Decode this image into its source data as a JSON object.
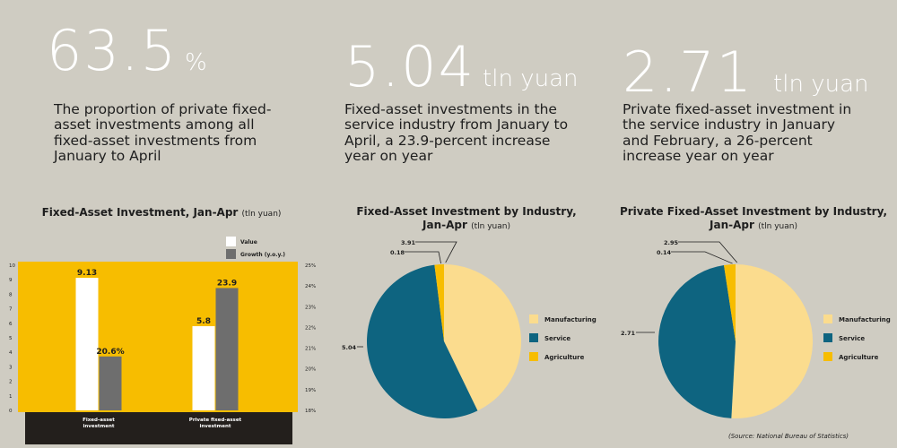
{
  "stats": [
    {
      "value": "63.5",
      "unit": "%",
      "text": "The proportion of private fixed-asset investments among all fixed-asset investments from January to April"
    },
    {
      "value": "5.04",
      "unit": "tln yuan",
      "text": "Fixed-asset investments in the service industry from January to April, a 23.9-percent increase year on year"
    },
    {
      "value": "2.71",
      "unit": "tln yuan",
      "text": "Private fixed-asset investment in the service industry in January and February, a 26-percent increase year on year"
    }
  ],
  "source": "(Source: National Bureau of Statistics)",
  "colors": {
    "background": "#cfccc2",
    "bar_panel": "#f7bd00",
    "value_bar": "#ffffff",
    "growth_bar": "#6e6e6e",
    "manufacturing": "#fbdc8e",
    "service": "#0e6480",
    "agriculture": "#f7bd00"
  },
  "chart_data": [
    {
      "type": "bar",
      "title": "Fixed-Asset Investment, Jan-Apr",
      "title_unit": "(tln yuan)",
      "categories": [
        "Fixed-asset investment",
        "Private fixed-asset investment"
      ],
      "series": [
        {
          "name": "Value",
          "values": [
            9.13,
            5.8
          ],
          "labels": [
            "9.13",
            "5.8"
          ]
        },
        {
          "name": "Growth (y.o.y.)",
          "values": [
            20.6,
            23.9
          ],
          "labels": [
            "20.6%",
            "23.9"
          ]
        }
      ],
      "ylim_left": [
        0,
        10
      ],
      "yticks_left": [
        "0",
        "1",
        "2",
        "3",
        "4",
        "5",
        "6",
        "7",
        "8",
        "9",
        "10"
      ],
      "ylim_right": [
        18,
        25
      ],
      "yticks_right": [
        "18%",
        "19%",
        "20%",
        "21%",
        "22%",
        "23%",
        "24%",
        "25%"
      ],
      "legend": "top-right"
    },
    {
      "type": "pie",
      "title": "Fixed-Asset Investment by Industry, Jan-Apr",
      "title_unit": "(tln yuan)",
      "labels": [
        "Manufacturing",
        "Service",
        "Agriculture"
      ],
      "values": [
        3.91,
        5.04,
        0.18
      ],
      "value_labels": [
        "3.91",
        "5.04",
        "0.18"
      ],
      "legend": "right"
    },
    {
      "type": "pie",
      "title": "Private Fixed-Asset Investment by Industry, Jan-Apr",
      "title_unit": "(tln yuan)",
      "labels": [
        "Manufacturing",
        "Service",
        "Agriculture"
      ],
      "values": [
        2.95,
        2.71,
        0.14
      ],
      "value_labels": [
        "2.95",
        "2.71",
        "0.14"
      ],
      "legend": "right"
    }
  ]
}
